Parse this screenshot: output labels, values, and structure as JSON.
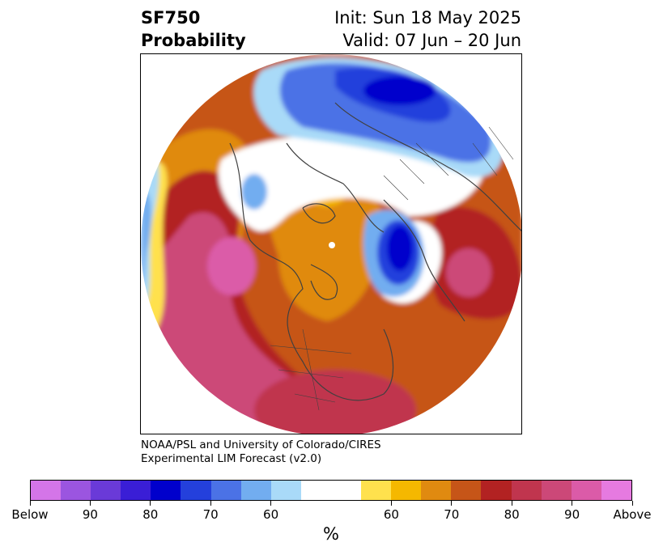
{
  "title": {
    "line1": "SF750",
    "line2": "Probability",
    "init": "Init: Sun 18 May 2025",
    "valid": "Valid: 07 Jun – 20 Jun"
  },
  "credit": {
    "line1": "NOAA/PSL and University of Colorado/CIRES",
    "line2": "Experimental LIM Forecast (v2.0)"
  },
  "colorbar": {
    "colors": [
      "#d475e8",
      "#9b55e0",
      "#6a3ad8",
      "#3a1ed6",
      "#0000cc",
      "#2440dc",
      "#4b72e6",
      "#72adf0",
      "#a9daf8",
      "#ffffff",
      "#ffe14d",
      "#f5b800",
      "#e08a10",
      "#c65518",
      "#b22222",
      "#c0354e",
      "#cc4878",
      "#db5ba8",
      "#e67ae0"
    ],
    "tick_labels": [
      "Below",
      "90",
      "80",
      "70",
      "60",
      "60",
      "70",
      "80",
      "90",
      "Above"
    ],
    "unit": "%"
  },
  "map": {
    "projection": "north polar stereographic",
    "field": "SF750 probability"
  }
}
